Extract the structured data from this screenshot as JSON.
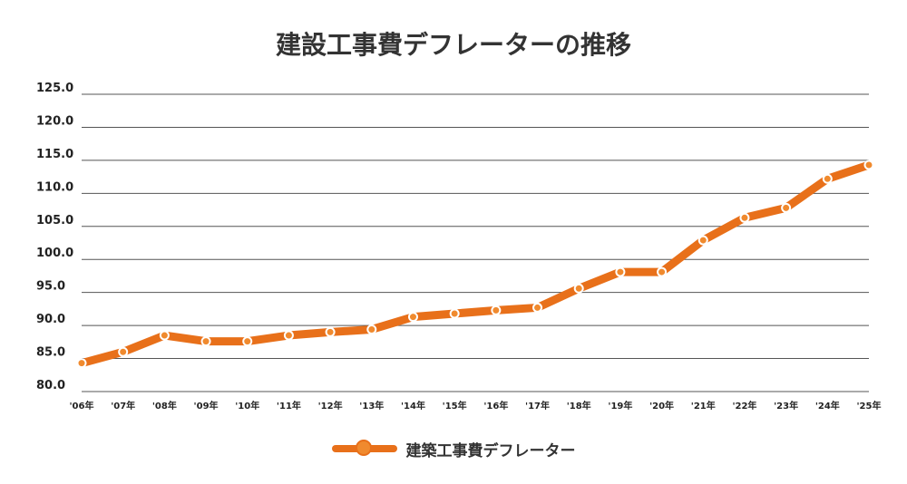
{
  "chart_data": {
    "type": "line",
    "title": "建設工事費デフレーターの推移",
    "xlabel": "",
    "ylabel": "",
    "categories": [
      "'06年",
      "'07年",
      "'08年",
      "'09年",
      "'10年",
      "'11年",
      "'12年",
      "'13年",
      "'14年",
      "'15年",
      "'16年",
      "'17年",
      "'18年",
      "'19年",
      "'20年",
      "'21年",
      "'22年",
      "'23年",
      "'24年",
      "'25年"
    ],
    "series": [
      {
        "name": "建築工事費デフレーター",
        "values": [
          84.3,
          86.0,
          88.5,
          87.6,
          87.6,
          88.5,
          89.0,
          89.4,
          91.3,
          91.8,
          92.3,
          92.7,
          95.6,
          98.1,
          98.1,
          102.9,
          106.3,
          107.8,
          112.2,
          114.3
        ]
      }
    ],
    "yticks": [
      "125.0",
      "120.0",
      "115.0",
      "110.0",
      "105.0",
      "100.0",
      "95.0",
      "90.0",
      "85.0",
      "80.0"
    ],
    "ylim": [
      80.0,
      125.0
    ],
    "grid": true,
    "legend_position": "bottom-center",
    "colors": {
      "line": "#E8701A",
      "marker_fill": "#F08A2E",
      "marker_stroke": "#ffffff",
      "grid": "#555555",
      "text": "#333333"
    }
  }
}
